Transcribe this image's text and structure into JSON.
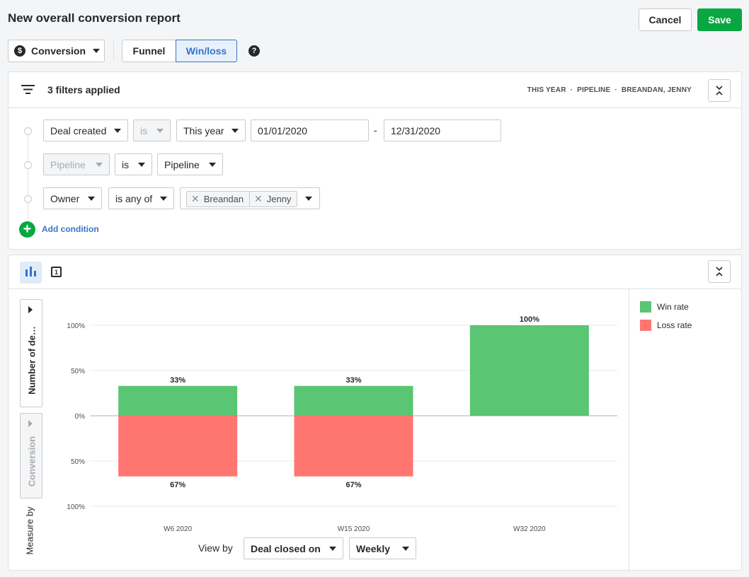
{
  "header": {
    "title": "New overall conversion report",
    "cancel_label": "Cancel",
    "save_label": "Save"
  },
  "toolbar": {
    "report_type": "Conversion",
    "tabs": [
      "Funnel",
      "Win/loss"
    ],
    "active_tab": "Win/loss"
  },
  "filters": {
    "summary": "3 filters applied",
    "tags": [
      "THIS YEAR",
      "PIPELINE",
      "BREANDAN, JENNY"
    ],
    "rows": [
      {
        "field": "Deal created",
        "operator": "is",
        "value": "This year",
        "from": "01/01/2020",
        "to": "12/31/2020"
      },
      {
        "field": "Pipeline",
        "operator": "is",
        "value": "Pipeline"
      },
      {
        "field": "Owner",
        "operator": "is any of",
        "chips": [
          "Breandan",
          "Jenny"
        ]
      }
    ],
    "date_separator": "-",
    "add_condition_label": "Add condition"
  },
  "chart_panel": {
    "measure_label": "Number of de…",
    "conversion_label": "Conversion",
    "measure_by_label": "Measure by",
    "view_by_label": "View by",
    "view_by_value": "Deal closed on",
    "interval_value": "Weekly",
    "toggle_icon_label": "1"
  },
  "chart_data": {
    "type": "bar",
    "categories": [
      "W6 2020",
      "W15 2020",
      "W32 2020"
    ],
    "series": [
      {
        "name": "Win rate",
        "values": [
          33,
          33,
          100
        ],
        "color": "#5ac572"
      },
      {
        "name": "Loss rate",
        "values": [
          67,
          67,
          0
        ],
        "color": "#ff7671"
      }
    ],
    "y_ticks": [
      "100%",
      "50%",
      "0%",
      "50%",
      "100%"
    ],
    "ylim": [
      -100,
      100
    ],
    "data_labels": {
      "win": [
        "33%",
        "33%",
        "100%"
      ],
      "loss": [
        "67%",
        "67%",
        ""
      ]
    }
  }
}
